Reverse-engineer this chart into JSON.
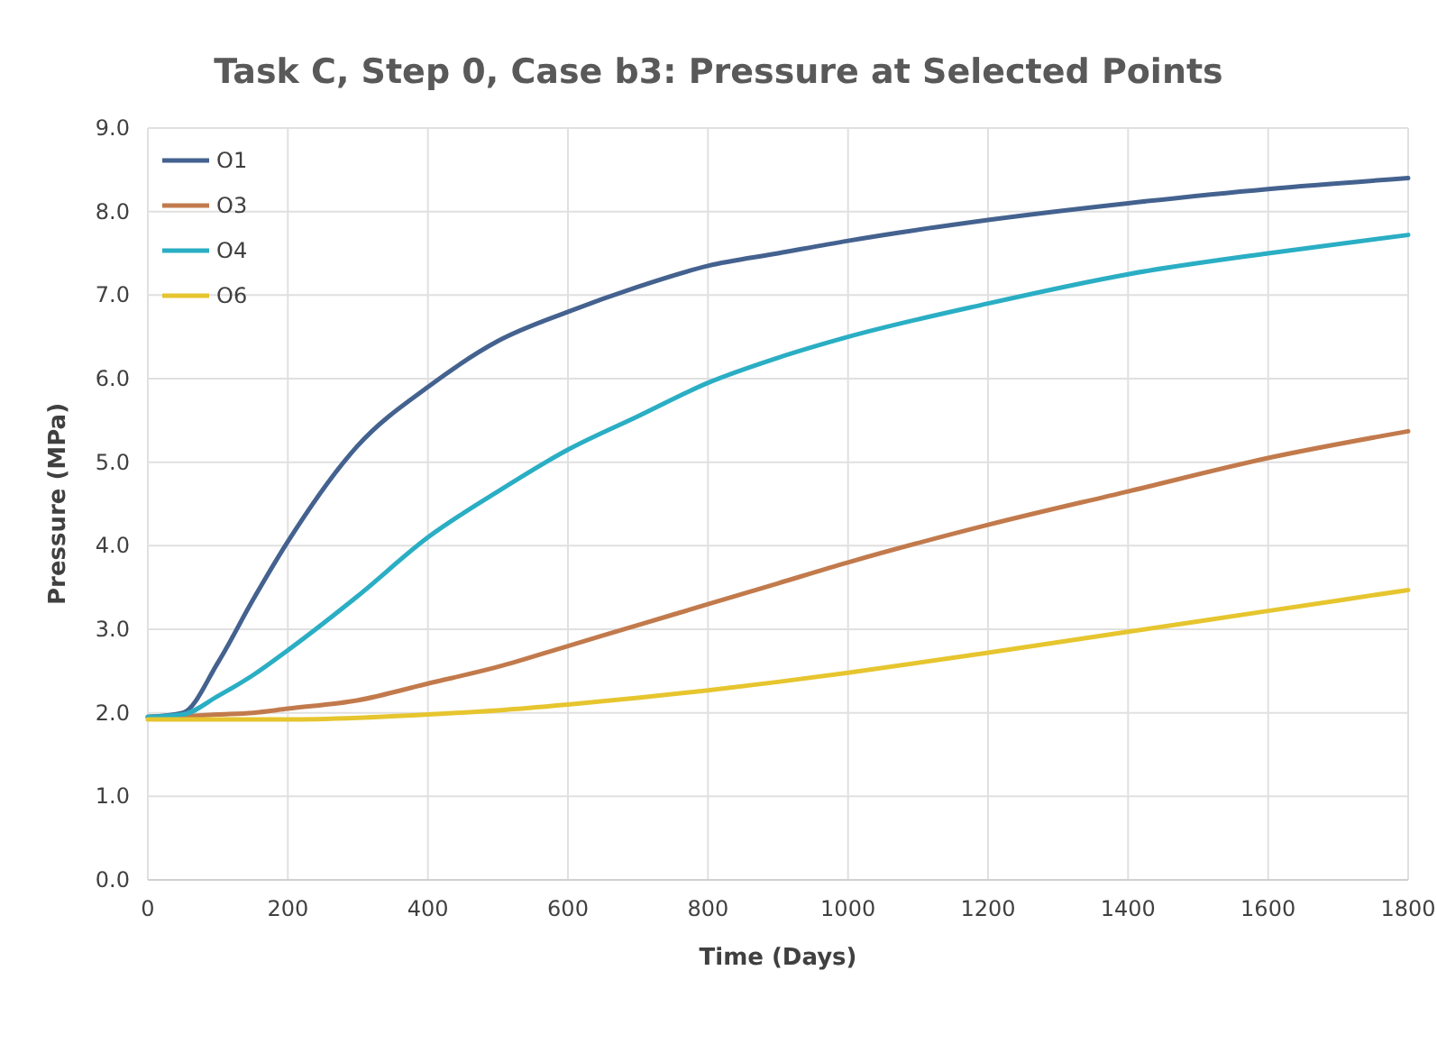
{
  "chart_data": {
    "type": "line",
    "title": "Task C, Step 0, Case b3: Pressure at Selected Points",
    "xlabel": "Time (Days)",
    "ylabel": "Pressure (MPa)",
    "xlim": [
      0,
      1800
    ],
    "xticks": [
      0,
      200,
      400,
      600,
      800,
      1000,
      1200,
      1400,
      1600,
      1800
    ],
    "ylim": [
      0,
      9
    ],
    "yticks": [
      {
        "value": 0,
        "label": "0.0"
      },
      {
        "value": 1,
        "label": "1.0"
      },
      {
        "value": 2,
        "label": "2.0"
      },
      {
        "value": 3,
        "label": "3.0"
      },
      {
        "value": 4,
        "label": "4.0"
      },
      {
        "value": 5,
        "label": "5.0"
      },
      {
        "value": 6,
        "label": "6.0"
      },
      {
        "value": 7,
        "label": "7.0"
      },
      {
        "value": 8,
        "label": "8.0"
      },
      {
        "value": 9,
        "label": "9.0"
      }
    ],
    "grid": true,
    "legend": "top left",
    "marker": "none",
    "line_style": "solid",
    "x": [
      0,
      50,
      100,
      150,
      200,
      300,
      400,
      500,
      600,
      700,
      800,
      900,
      1000,
      1200,
      1400,
      1600,
      1800
    ],
    "series": [
      {
        "name": "O1",
        "color": "#44628f",
        "values": [
          1.95,
          2.0,
          2.6,
          3.35,
          4.05,
          5.2,
          5.9,
          6.45,
          6.8,
          7.1,
          7.35,
          7.5,
          7.65,
          7.9,
          8.1,
          8.27,
          8.4
        ]
      },
      {
        "name": "O3",
        "color": "#c27a4c",
        "values": [
          1.95,
          1.96,
          1.98,
          2.0,
          2.05,
          2.15,
          2.35,
          2.55,
          2.8,
          3.05,
          3.3,
          3.55,
          3.8,
          4.25,
          4.65,
          5.05,
          5.37
        ]
      },
      {
        "name": "O4",
        "color": "#2aaec4",
        "values": [
          1.95,
          1.98,
          2.2,
          2.45,
          2.75,
          3.4,
          4.1,
          4.65,
          5.15,
          5.55,
          5.95,
          6.25,
          6.5,
          6.9,
          7.25,
          7.5,
          7.72
        ]
      },
      {
        "name": "O6",
        "color": "#e6c52e",
        "values": [
          1.92,
          1.92,
          1.92,
          1.92,
          1.92,
          1.94,
          1.98,
          2.03,
          2.1,
          2.18,
          2.27,
          2.37,
          2.48,
          2.72,
          2.97,
          3.22,
          3.47
        ]
      }
    ]
  }
}
